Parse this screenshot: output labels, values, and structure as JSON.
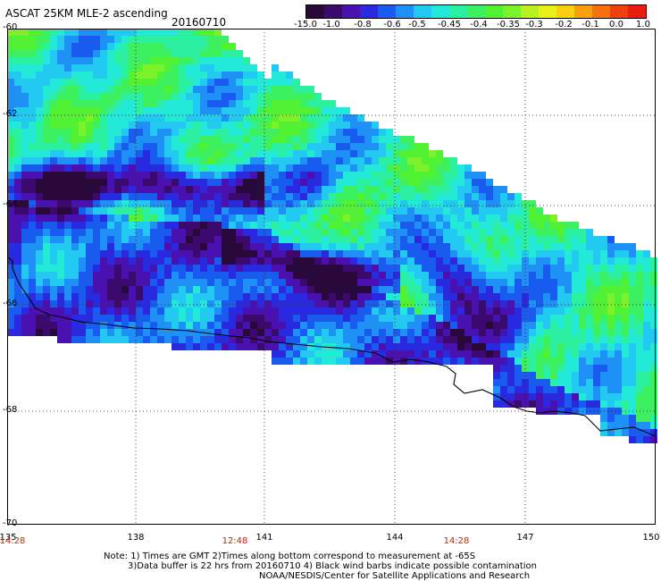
{
  "header": {
    "title": "ASCAT 25KM MLE-2 ascending",
    "date": "20160710"
  },
  "colorbar": {
    "colors": [
      "#2a0a3a",
      "#3c0a6e",
      "#4a12b0",
      "#2a2ae0",
      "#1a5cf0",
      "#1f90f5",
      "#21c8f0",
      "#22e8d8",
      "#2af0a0",
      "#3cf060",
      "#52f032",
      "#7cf028",
      "#b8f020",
      "#e8f018",
      "#f8d010",
      "#f8a010",
      "#f87010",
      "#f04010",
      "#e81e10"
    ],
    "tick_labels": [
      "-15.0",
      "-1.0",
      "-0.8",
      "-0.6",
      "-0.5",
      "-0.45",
      "-0.4",
      "-0.35",
      "-0.3",
      "-0.2",
      "-0.1",
      "0.0",
      "1.0"
    ]
  },
  "map": {
    "lat_labels": [
      "-60",
      "-62",
      "-64",
      "-66",
      "-68",
      "-70"
    ],
    "lon_labels": [
      "135",
      "138",
      "141",
      "144",
      "147",
      "150"
    ],
    "time_labels": [
      "14:28",
      "12:48",
      "14:28"
    ]
  },
  "notes": {
    "line1": "Note: 1) Times are GMT 2)Times along bottom correspond to measurement at -65S",
    "line2": "3)Data buffer is 22 hrs from 20160710 4) Black wind barbs indicate possible contamination",
    "line3": "NOAA/NESDIS/Center for Satellite Applications and Research"
  }
}
